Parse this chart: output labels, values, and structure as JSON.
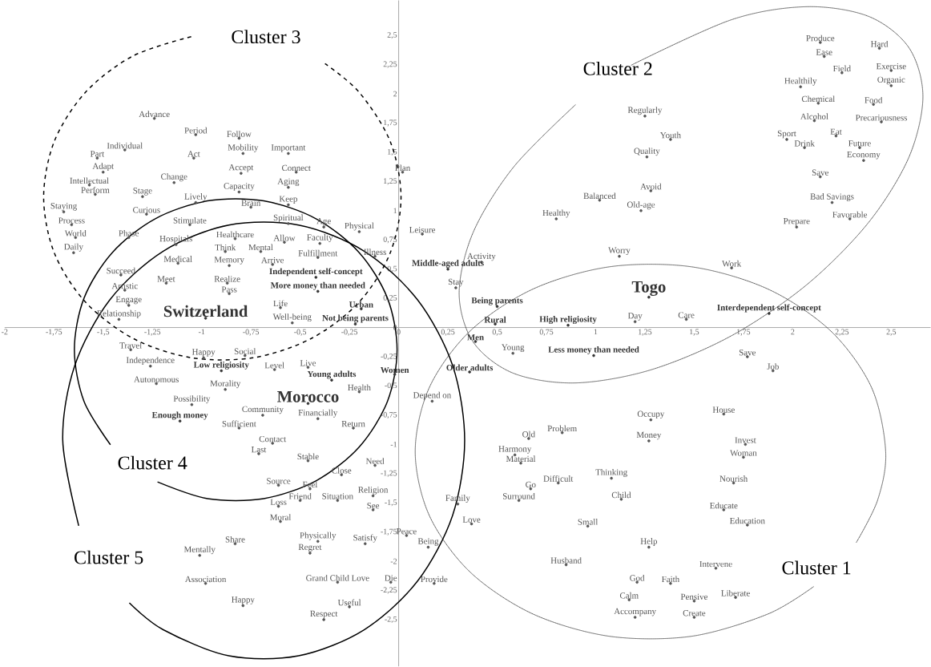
{
  "chart_data": {
    "type": "scatter",
    "marker": "circle",
    "xlim": [
      -2,
      2.7
    ],
    "ylim": [
      -2.9,
      2.8
    ],
    "xticks": [
      -2,
      {
        "value": -1.75,
        "label": "-1,75"
      },
      {
        "value": -1.5,
        "label": "-1,5"
      },
      {
        "value": -1.25,
        "label": "-1,25"
      },
      -1,
      {
        "value": -0.75,
        "label": "-0,75"
      },
      {
        "value": -0.5,
        "label": "-0,5"
      },
      {
        "value": -0.25,
        "label": "-0,25"
      },
      0,
      {
        "value": 0.25,
        "label": "0,25"
      },
      {
        "value": 0.5,
        "label": "0,5"
      },
      {
        "value": 0.75,
        "label": "0,75"
      },
      1,
      {
        "value": 1.25,
        "label": "1,25"
      },
      {
        "value": 1.5,
        "label": "1,5"
      },
      {
        "value": 1.75,
        "label": "1,75"
      },
      2,
      {
        "value": 2.25,
        "label": "2,25"
      },
      {
        "value": 2.5,
        "label": "2,5"
      }
    ],
    "yticks": [
      {
        "value": -2.5,
        "label": "-2,5"
      },
      {
        "value": -2.25,
        "label": "-2,25"
      },
      -2,
      {
        "value": -1.75,
        "label": "-1,75"
      },
      {
        "value": -1.5,
        "label": "-1,5"
      },
      {
        "value": -1.25,
        "label": "-1,25"
      },
      -1,
      {
        "value": -0.75,
        "label": "-0,75"
      },
      {
        "value": -0.5,
        "label": "-0,5"
      },
      {
        "value": -0.25,
        "label": "-0,25"
      },
      0,
      {
        "value": 0.25,
        "label": "0,25"
      },
      {
        "value": 0.5,
        "label": "0,5"
      },
      {
        "value": 0.75,
        "label": "0,75"
      },
      1,
      {
        "value": 1.25,
        "label": "1,25"
      },
      {
        "value": 1.5,
        "label": "1,5"
      },
      {
        "value": 1.75,
        "label": "1,75"
      },
      2,
      {
        "value": 2.25,
        "label": "2,25"
      },
      {
        "value": 2.5,
        "label": "2,5"
      }
    ],
    "series": [
      {
        "color": "#555555",
        "x": [
          -1.24,
          -1.03,
          -0.81,
          -1.39,
          -1.04,
          -0.79,
          -0.56,
          -1.53,
          -1.5,
          -1.57,
          -1.54,
          -1.14,
          -0.8,
          -0.52,
          -1.3,
          -0.56,
          -0.81,
          -1.03,
          -0.75,
          -0.56,
          -1.7,
          -1.28,
          -1.66,
          -1.06,
          -0.56,
          -0.38,
          -0.2,
          -1.64,
          -1.37,
          -1.13,
          -0.83,
          -0.58,
          -0.4,
          -0.88,
          -0.7,
          -1.65,
          -0.12,
          -0.41,
          -1.12,
          -0.86,
          -0.64,
          -1.41,
          -1.18,
          -0.87,
          -1.39,
          -0.86,
          -1.37,
          -0.6,
          -1.42,
          -0.54,
          -1.36,
          -0.99,
          -0.78,
          -1.26,
          -0.63,
          -0.46,
          -1.23,
          -0.88,
          -0.2,
          -1.05,
          -0.69,
          -0.41,
          -0.81,
          -0.23,
          0.17,
          -0.64,
          -0.71,
          -0.46,
          -0.12,
          -0.29,
          -0.61,
          -0.45,
          -0.13,
          -0.5,
          -0.31,
          -0.13,
          -0.61,
          -0.6,
          0.3,
          0.37,
          0.04,
          -0.83,
          -0.41,
          -0.17,
          0.15,
          -1.01,
          -0.45,
          -0.98,
          -0.31,
          -0.04,
          0.18,
          -0.79,
          -0.25,
          -0.38,
          0.02,
          0.12,
          0.42,
          0.29,
          0.58,
          1.2,
          1.46,
          1.12,
          1.69,
          0.8,
          1.02,
          1.23,
          1.28,
          1.26,
          1.38,
          1.25,
          2.14,
          2.16,
          2.44,
          2.25,
          2.5,
          2.04,
          2.5,
          2.13,
          2.41,
          2.11,
          2.45,
          1.97,
          2.22,
          2.06,
          2.34,
          2.36,
          2.14,
          2.2,
          2.29,
          2.02,
          1.77,
          1.9,
          1.28,
          1.65,
          0.66,
          0.83,
          1.27,
          1.76,
          0.59,
          0.62,
          1.75,
          0.81,
          1.08,
          0.67,
          1.7,
          0.61,
          1.13,
          1.65,
          0.96,
          1.77,
          1.27,
          0.85,
          1.61,
          1.21,
          1.38,
          1.17,
          1.5,
          1.71,
          1.2,
          1.5
        ],
        "values": [
          1.79,
          1.65,
          1.62,
          1.52,
          1.45,
          1.49,
          1.49,
          1.45,
          1.33,
          1.22,
          1.14,
          1.24,
          1.32,
          1.33,
          1.12,
          1.2,
          1.16,
          1.07,
          1.03,
          1.05,
          0.99,
          0.97,
          0.88,
          0.88,
          0.89,
          0.86,
          0.82,
          0.77,
          0.77,
          0.71,
          0.76,
          0.73,
          0.72,
          0.65,
          0.65,
          0.64,
          0.61,
          0.6,
          0.55,
          0.53,
          0.54,
          0.45,
          0.38,
          0.38,
          0.32,
          0.29,
          0.19,
          0.17,
          0.07,
          0.04,
          -0.19,
          -0.26,
          -0.24,
          -0.33,
          -0.36,
          -0.34,
          -0.48,
          -0.53,
          -0.55,
          -0.66,
          -0.75,
          -0.78,
          -0.86,
          -0.86,
          -0.63,
          -0.99,
          -1.08,
          -1.14,
          -1.18,
          -1.26,
          -1.35,
          -1.38,
          -1.44,
          -1.48,
          -1.48,
          -1.56,
          -1.53,
          -1.66,
          -1.51,
          -1.68,
          -1.78,
          -1.85,
          -1.83,
          -1.85,
          -1.88,
          -1.95,
          -1.93,
          -2.19,
          -2.18,
          -2.18,
          -2.19,
          -2.38,
          -2.39,
          -2.5,
          1.33,
          0.8,
          0.56,
          0.34,
          -0.22,
          0.05,
          0.07,
          0.61,
          0.51,
          0.93,
          1.09,
          1.0,
          1.17,
          1.46,
          1.61,
          1.81,
          2.44,
          2.32,
          2.39,
          2.18,
          2.2,
          2.06,
          2.07,
          1.92,
          1.91,
          1.77,
          1.76,
          1.61,
          1.64,
          1.54,
          1.54,
          1.43,
          1.29,
          1.07,
          0.93,
          0.86,
          -0.25,
          -0.37,
          -0.79,
          -0.74,
          -0.95,
          -0.9,
          -0.97,
          -1.0,
          -1.09,
          -1.16,
          -1.11,
          -1.33,
          -1.29,
          -1.38,
          -1.33,
          -1.48,
          -1.47,
          -1.56,
          -1.7,
          -1.69,
          -1.88,
          -2.03,
          -2.06,
          -2.18,
          -2.19,
          -2.33,
          -2.34,
          -2.31,
          -2.48,
          -2.48
        ],
        "value_labels": [
          "Advance",
          "Period",
          "Follow",
          "Individual",
          "Act",
          "Mobility",
          "Important",
          "Part",
          "Adapt",
          "Intellectual",
          "Perform",
          "Change",
          "Accept",
          "Connect",
          "Stage",
          "Aging",
          "Capacity",
          "Lively",
          "Brain",
          "Keep",
          "Staying",
          "Curious",
          "Process",
          "Stimulate",
          "Spiritual",
          "Age",
          "Physical",
          "World",
          "Phase",
          "Hospitals",
          "Healthcare",
          "Allow",
          "Faculty",
          "Think",
          "Mental",
          "Daily",
          "Illness",
          "Fulfillment",
          "Medical",
          "Memory",
          "Arrive",
          "Succeed",
          "Meet",
          "Realize",
          "Artistic",
          "Pass",
          "Engage",
          "Life",
          "Relationship",
          "Well-being",
          "Travel",
          "Happy",
          "Social",
          "Independence",
          "Level",
          "Live",
          "Autonomous",
          "Morality",
          "Health",
          "Possibility",
          "Community",
          "Financially",
          "Sufficient",
          "Return",
          "Depend on",
          "Contact",
          "Last",
          "Stable",
          "Need",
          "Close",
          "Source",
          "Feel",
          "Religion",
          "Friend",
          "Situation",
          "See",
          "Loss",
          "Moral",
          "Family",
          "Love",
          "Peace",
          "Share",
          "Physically",
          "Satisfy",
          "Being",
          "Mentally",
          "Regret",
          "Association",
          "Grand Child Love",
          "Die",
          "Provide",
          "Happy",
          "Useful",
          "Respect",
          "Plan",
          "Leisure",
          "Activity",
          "Stay",
          "Young",
          "Day",
          "Care",
          "Worry",
          "Work",
          "Healthy",
          "Balanced",
          "Old-age",
          "Avoid",
          "Quality",
          "Youth",
          "Regularly",
          "Produce",
          "Ease",
          "Hard",
          "Field",
          "Exercise",
          "Healthily",
          "Organic",
          "Chemical",
          "Food",
          "Alcohol",
          "Precariousness",
          "Sport",
          "Eat",
          "Drink",
          "Future",
          "Economy",
          "Save",
          "Bad Savings",
          "Favorable",
          "Prepare",
          "Save",
          "Job",
          "Occupy",
          "House",
          "Old",
          "Problem",
          "Money",
          "Invest",
          "Harmony",
          "Material",
          "Woman",
          "Difficult",
          "Thinking",
          "Go",
          "Nourish",
          "Surround",
          "Child",
          "Educate",
          "Small",
          "Education",
          "Help",
          "Husband",
          "Intervene",
          "God",
          "Faith",
          "Calm",
          "Pensive",
          "Liberate",
          "Accompany",
          "Create"
        ]
      },
      {
        "color": "#333333",
        "x": [
          -0.42,
          -0.41,
          -0.19,
          -0.22,
          -0.9,
          -0.34,
          -0.02,
          -1.11,
          0.25,
          0.5,
          0.49,
          0.86,
          0.39,
          0.99,
          0.36,
          1.88
        ],
        "values": [
          0.43,
          0.31,
          0.16,
          0.03,
          -0.37,
          -0.45,
          -0.4,
          -0.8,
          0.5,
          0.18,
          0.03,
          0.02,
          -0.12,
          -0.24,
          -0.38,
          0.12
        ],
        "value_labels": [
          "Independent self-concept",
          "More money than needed",
          "Urban",
          "Not being parents",
          "Low religiosity",
          "Young adults",
          "Women",
          "Enough money",
          "Middle-aged adults",
          "Being parents",
          "Rural",
          "High religiosity",
          "Men",
          "Less money than needed",
          "Older adults",
          "Interdependent self-concept"
        ]
      },
      {
        "color": "#333333",
        "x": [
          -0.98,
          -0.46,
          1.27
        ],
        "values": [
          0.08,
          -0.65,
          0.26
        ],
        "value_labels": [
          "Switzerland",
          "Morocco",
          "Togo"
        ]
      },
      {
        "type": "line",
        "color": "#404040",
        "line_style": "dotted",
        "marker": "none",
        "x": [
          2.323,
          2.431,
          2.472,
          2.4,
          2.193,
          1.875,
          1.486,
          1.07,
          0.681,
          0.363,
          0.156,
          0.084,
          0.156,
          0.363,
          0.681,
          1.07,
          1.486,
          1.875,
          2.108
        ],
        "values": [
          -1.839,
          -1.477,
          -1.061,
          -0.512,
          -0.029,
          0.329,
          0.52,
          0.52,
          0.329,
          -0.029,
          -0.512,
          -1.061,
          -1.61,
          -2.093,
          -2.451,
          -2.642,
          -2.642,
          -2.451,
          -2.215
        ]
      },
      {
        "type": "line",
        "color": "#404040",
        "line_style": "dotted",
        "marker": "none",
        "x": [
          0.897,
          0.584,
          0.379,
          0.307,
          0.378,
          0.581,
          0.895,
          1.278,
          1.687,
          2.071,
          2.384,
          2.589,
          2.661,
          2.59,
          2.387,
          2.073,
          1.69,
          1.181
        ],
        "values": [
          1.906,
          1.375,
          0.818,
          0.296,
          -0.123,
          -0.39,
          -0.474,
          -0.363,
          -0.072,
          0.366,
          0.897,
          1.454,
          1.976,
          2.395,
          2.662,
          2.746,
          2.635,
          2.246
        ]
      },
      {
        "type": "line",
        "color": "#000000",
        "line_style": "dashed",
        "marker": "none",
        "x": [
          -1.053,
          -1.349,
          -1.59,
          -1.748,
          -1.802,
          -1.748,
          -1.59,
          -1.349,
          -1.053,
          -0.737,
          -0.442,
          -0.2,
          -0.043,
          0.012,
          -0.043,
          -0.2,
          -0.374
        ],
        "values": [
          2.49,
          2.324,
          2.013,
          1.593,
          1.116,
          0.639,
          0.219,
          -0.092,
          -0.258,
          -0.258,
          -0.092,
          0.219,
          0.639,
          1.116,
          1.593,
          2.013,
          2.259
        ]
      },
      {
        "type": "line",
        "color": "#000000",
        "line_style": "solid",
        "marker": "none",
        "x": [
          -1.224,
          -0.97,
          -0.685,
          -0.418,
          -0.2,
          -0.057,
          -0.008,
          -0.057,
          -0.2,
          -0.418,
          -0.685,
          -0.97,
          -1.237,
          -1.454,
          -1.597,
          -1.646,
          -1.597,
          -1.463
        ],
        "values": [
          -1.321,
          -1.464,
          -1.464,
          -1.31,
          -1.021,
          -0.632,
          -0.19,
          0.252,
          0.641,
          0.93,
          1.084,
          1.084,
          0.93,
          0.641,
          0.252,
          -0.19,
          -0.632,
          -1.003
        ]
      },
      {
        "type": "line",
        "color": "#000000",
        "line_style": "solid",
        "marker": "none",
        "x": [
          -1.367,
          -1.195,
          -0.862,
          -0.508,
          -0.175,
          0.096,
          0.274,
          0.335,
          0.274,
          0.096,
          -0.175,
          -0.508,
          -0.862,
          -1.195,
          -1.466,
          -1.644,
          -1.705,
          -1.624
        ],
        "values": [
          -2.356,
          -2.586,
          -2.809,
          -2.809,
          -2.586,
          -2.169,
          -1.606,
          -0.966,
          -0.326,
          0.237,
          0.654,
          0.877,
          0.877,
          0.654,
          0.237,
          -0.326,
          -0.966,
          -1.697
        ]
      }
    ],
    "annotations": [
      "Cluster 1",
      "Cluster 2",
      "Cluster 3",
      "Cluster 4",
      "Cluster 5"
    ]
  }
}
